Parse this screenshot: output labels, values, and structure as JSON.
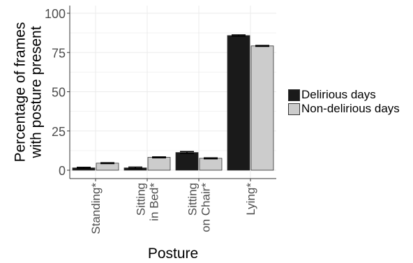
{
  "chart_data": {
    "type": "bar",
    "title": "",
    "xlabel": "Posture",
    "ylabel_lines": [
      "Percentage of frames",
      "with posture present"
    ],
    "categories": [
      [
        "Standing*"
      ],
      [
        "Sitting",
        "in Bed*"
      ],
      [
        "Sitting",
        "on Chair*"
      ],
      [
        "Lying*"
      ]
    ],
    "series": [
      {
        "name": "Delirious days",
        "color": "#1a1a1a",
        "values": [
          1.5,
          1.5,
          11.3,
          85.8
        ],
        "errors": [
          0.4,
          0.5,
          0.6,
          0.4
        ]
      },
      {
        "name": "Non-delirious days",
        "color": "#cccccc",
        "values": [
          4.5,
          8.2,
          7.6,
          79.2
        ],
        "errors": [
          0.3,
          0.3,
          0.3,
          0.3
        ]
      }
    ],
    "ylim": [
      0,
      100
    ],
    "yticks": [
      0,
      25,
      50,
      75,
      100
    ],
    "grid": true,
    "legend": "right"
  }
}
